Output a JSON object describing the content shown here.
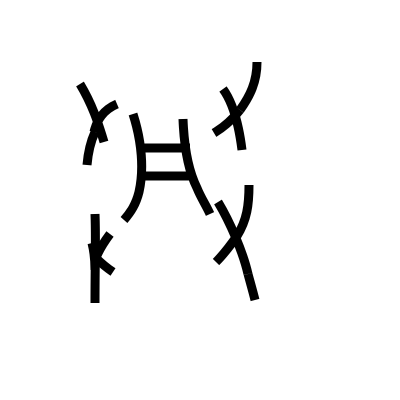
{
  "figure": {
    "background": "#ffffff",
    "ink_color": "#000000",
    "marks": [
      "top-left-cross",
      "top-right-cross",
      "bottom-left-cross",
      "bottom-right-cross",
      "ladder-connector"
    ]
  }
}
